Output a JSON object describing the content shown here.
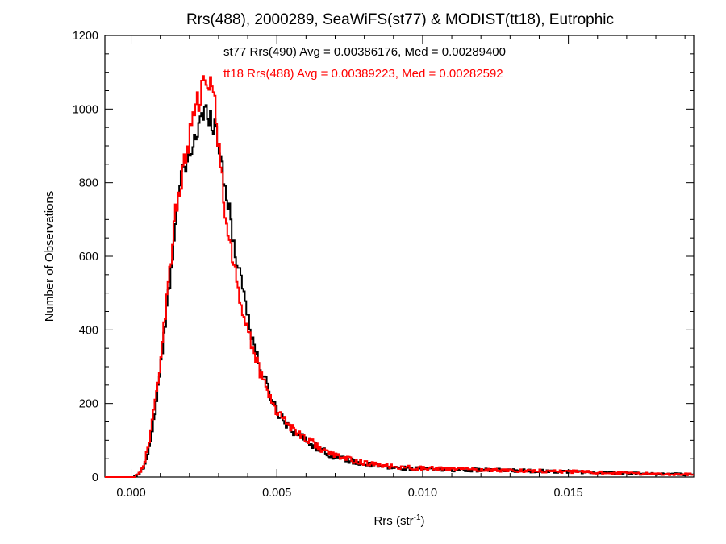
{
  "chart_data": {
    "type": "line",
    "style": "histogram-step",
    "title": "Rrs(488), 2000289, SeaWiFS(st77) & MODIST(tt18), Eutrophic",
    "xlabel_base": "Rrs (str",
    "xlabel_sup": "-1",
    "xlabel_close": ")",
    "ylabel": "Number of Observations",
    "xlim": [
      -0.0009,
      0.0193
    ],
    "ylim": [
      0,
      1200
    ],
    "grid": false,
    "x_ticks": [
      {
        "value": 0.0,
        "label": "0.000"
      },
      {
        "value": 0.005,
        "label": "0.005"
      },
      {
        "value": 0.01,
        "label": "0.010"
      },
      {
        "value": 0.015,
        "label": "0.015"
      }
    ],
    "y_ticks": [
      {
        "value": 0,
        "label": "0"
      },
      {
        "value": 200,
        "label": "200"
      },
      {
        "value": 400,
        "label": "400"
      },
      {
        "value": 600,
        "label": "600"
      },
      {
        "value": 800,
        "label": "800"
      },
      {
        "value": 1000,
        "label": "1000"
      },
      {
        "value": 1200,
        "label": "1200"
      }
    ],
    "bin_width": 5e-05,
    "x_start": -0.0009,
    "series": [
      {
        "id": "st77",
        "color": "#000000",
        "legend": "st77 Rrs(490) Avg = 0.00386176, Med = 0.00289400",
        "knots": [
          [
            -0.0009,
            0
          ],
          [
            0.0001,
            0
          ],
          [
            0.0003,
            8
          ],
          [
            0.0005,
            40
          ],
          [
            0.0007,
            110
          ],
          [
            0.0009,
            220
          ],
          [
            0.0011,
            360
          ],
          [
            0.0013,
            510
          ],
          [
            0.0015,
            680
          ],
          [
            0.0017,
            800
          ],
          [
            0.0019,
            850
          ],
          [
            0.0021,
            900
          ],
          [
            0.0023,
            950
          ],
          [
            0.0025,
            985
          ],
          [
            0.0027,
            990
          ],
          [
            0.0029,
            950
          ],
          [
            0.0031,
            860
          ],
          [
            0.0033,
            760
          ],
          [
            0.0035,
            640
          ],
          [
            0.0037,
            570
          ],
          [
            0.0039,
            490
          ],
          [
            0.0041,
            400
          ],
          [
            0.0043,
            330
          ],
          [
            0.0045,
            280
          ],
          [
            0.0047,
            240
          ],
          [
            0.005,
            180
          ],
          [
            0.0055,
            130
          ],
          [
            0.006,
            100
          ],
          [
            0.0065,
            75
          ],
          [
            0.007,
            55
          ],
          [
            0.008,
            35
          ],
          [
            0.009,
            25
          ],
          [
            0.01,
            22
          ],
          [
            0.011,
            20
          ],
          [
            0.013,
            18
          ],
          [
            0.015,
            15
          ],
          [
            0.017,
            10
          ],
          [
            0.0193,
            7
          ]
        ]
      },
      {
        "id": "tt18",
        "color": "#ff0000",
        "legend": "tt18 Rrs(488) Avg = 0.00389223, Med = 0.00282592",
        "knots": [
          [
            -0.0009,
            0
          ],
          [
            0.0001,
            0
          ],
          [
            0.0003,
            12
          ],
          [
            0.0005,
            50
          ],
          [
            0.0007,
            130
          ],
          [
            0.0009,
            250
          ],
          [
            0.0011,
            390
          ],
          [
            0.0013,
            540
          ],
          [
            0.0015,
            700
          ],
          [
            0.0017,
            800
          ],
          [
            0.0019,
            880
          ],
          [
            0.0021,
            960
          ],
          [
            0.0023,
            1020
          ],
          [
            0.0025,
            1060
          ],
          [
            0.0027,
            1080
          ],
          [
            0.0029,
            1000
          ],
          [
            0.0031,
            820
          ],
          [
            0.0033,
            680
          ],
          [
            0.0035,
            580
          ],
          [
            0.0037,
            500
          ],
          [
            0.0039,
            430
          ],
          [
            0.0041,
            370
          ],
          [
            0.0043,
            320
          ],
          [
            0.0045,
            270
          ],
          [
            0.0047,
            230
          ],
          [
            0.005,
            180
          ],
          [
            0.0055,
            135
          ],
          [
            0.006,
            105
          ],
          [
            0.0065,
            78
          ],
          [
            0.007,
            58
          ],
          [
            0.008,
            38
          ],
          [
            0.009,
            28
          ],
          [
            0.01,
            24
          ],
          [
            0.011,
            22
          ],
          [
            0.013,
            18
          ],
          [
            0.015,
            15
          ],
          [
            0.017,
            10
          ],
          [
            0.0193,
            7
          ]
        ]
      }
    ]
  }
}
